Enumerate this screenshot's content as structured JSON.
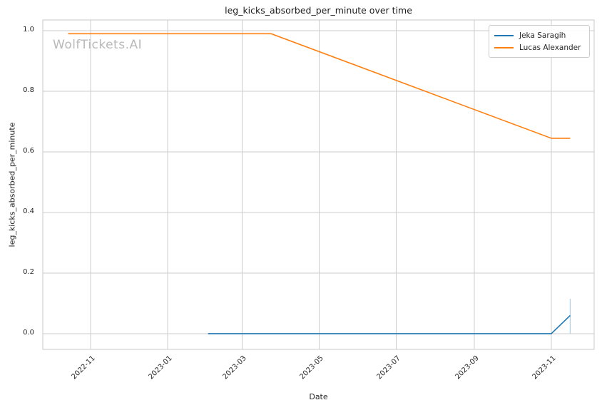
{
  "watermark": "WolfTickets.AI",
  "chart_data": {
    "type": "line",
    "title": "leg_kicks_absorbed_per_minute over time",
    "xlabel": "Date",
    "ylabel": "leg_kicks_absorbed_per_minute",
    "grid": true,
    "legend_position": "upper right",
    "x_domain": [
      "2022-09-24",
      "2023-12-05"
    ],
    "ylim": [
      -0.052,
      1.0355
    ],
    "x_ticks": [
      {
        "date": "2022-11-01",
        "label": "2022-11"
      },
      {
        "date": "2023-01-01",
        "label": "2023-01"
      },
      {
        "date": "2023-03-01",
        "label": "2023-03"
      },
      {
        "date": "2023-05-01",
        "label": "2023-05"
      },
      {
        "date": "2023-07-01",
        "label": "2023-07"
      },
      {
        "date": "2023-09-01",
        "label": "2023-09"
      },
      {
        "date": "2023-11-01",
        "label": "2023-11"
      }
    ],
    "y_ticks": [
      {
        "value": 0.0,
        "label": "0.0"
      },
      {
        "value": 0.2,
        "label": "0.2"
      },
      {
        "value": 0.4,
        "label": "0.4"
      },
      {
        "value": 0.6,
        "label": "0.6"
      },
      {
        "value": 0.8,
        "label": "0.8"
      },
      {
        "value": 1.0,
        "label": "1.0"
      }
    ],
    "series": [
      {
        "name": "Jeka Saragih",
        "color": "#1f77b4",
        "points": [
          {
            "date": "2023-02-02",
            "value": 0.0
          },
          {
            "date": "2023-11-01",
            "value": 0.0
          },
          {
            "date": "2023-11-16",
            "value": 0.06
          }
        ]
      },
      {
        "name": "Lucas Alexander",
        "color": "#ff7f0e",
        "points": [
          {
            "date": "2022-10-14",
            "value": 0.99
          },
          {
            "date": "2023-03-24",
            "value": 0.99
          },
          {
            "date": "2023-11-01",
            "value": 0.645
          },
          {
            "date": "2023-11-16",
            "value": 0.645
          }
        ]
      }
    ],
    "error_bar": {
      "series": "Jeka Saragih",
      "date": "2023-11-16",
      "from": 0.0,
      "to": 0.115,
      "color": "#aed1e6"
    },
    "grid_color": "#cdcdcd",
    "frame_color": "#c9c9c9"
  }
}
